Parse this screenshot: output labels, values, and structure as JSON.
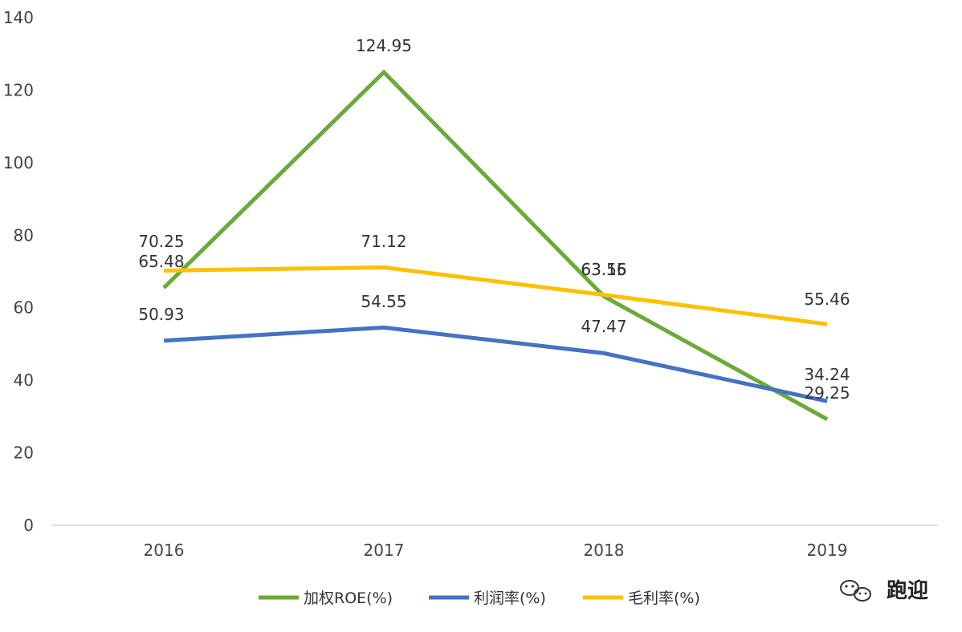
{
  "chart_data": {
    "type": "line",
    "categories": [
      "2016",
      "2017",
      "2018",
      "2019"
    ],
    "ylim": [
      0,
      140
    ],
    "yticks": [
      0,
      20,
      40,
      60,
      80,
      100,
      120,
      140
    ],
    "series": [
      {
        "name": "加权ROE(%)",
        "color": "#6aaa36",
        "values": [
          65.48,
          124.95,
          63.15,
          29.25
        ],
        "labels": [
          "65.48",
          "124.95",
          "63.15",
          "29.25"
        ]
      },
      {
        "name": "利润率(%)",
        "color": "#4472c4",
        "values": [
          50.93,
          54.55,
          47.47,
          34.24
        ],
        "labels": [
          "50.93",
          "54.55",
          "47.47",
          "34.24"
        ]
      },
      {
        "name": "毛利率(%)",
        "color": "#ffc000",
        "values": [
          70.25,
          71.12,
          63.56,
          55.46
        ],
        "labels": [
          "70.25",
          "71.12",
          "63.56",
          "55.46"
        ]
      }
    ],
    "legend_position": "bottom",
    "grid": false
  },
  "watermark": {
    "text": "跑迎",
    "icon": "wechat-icon"
  }
}
